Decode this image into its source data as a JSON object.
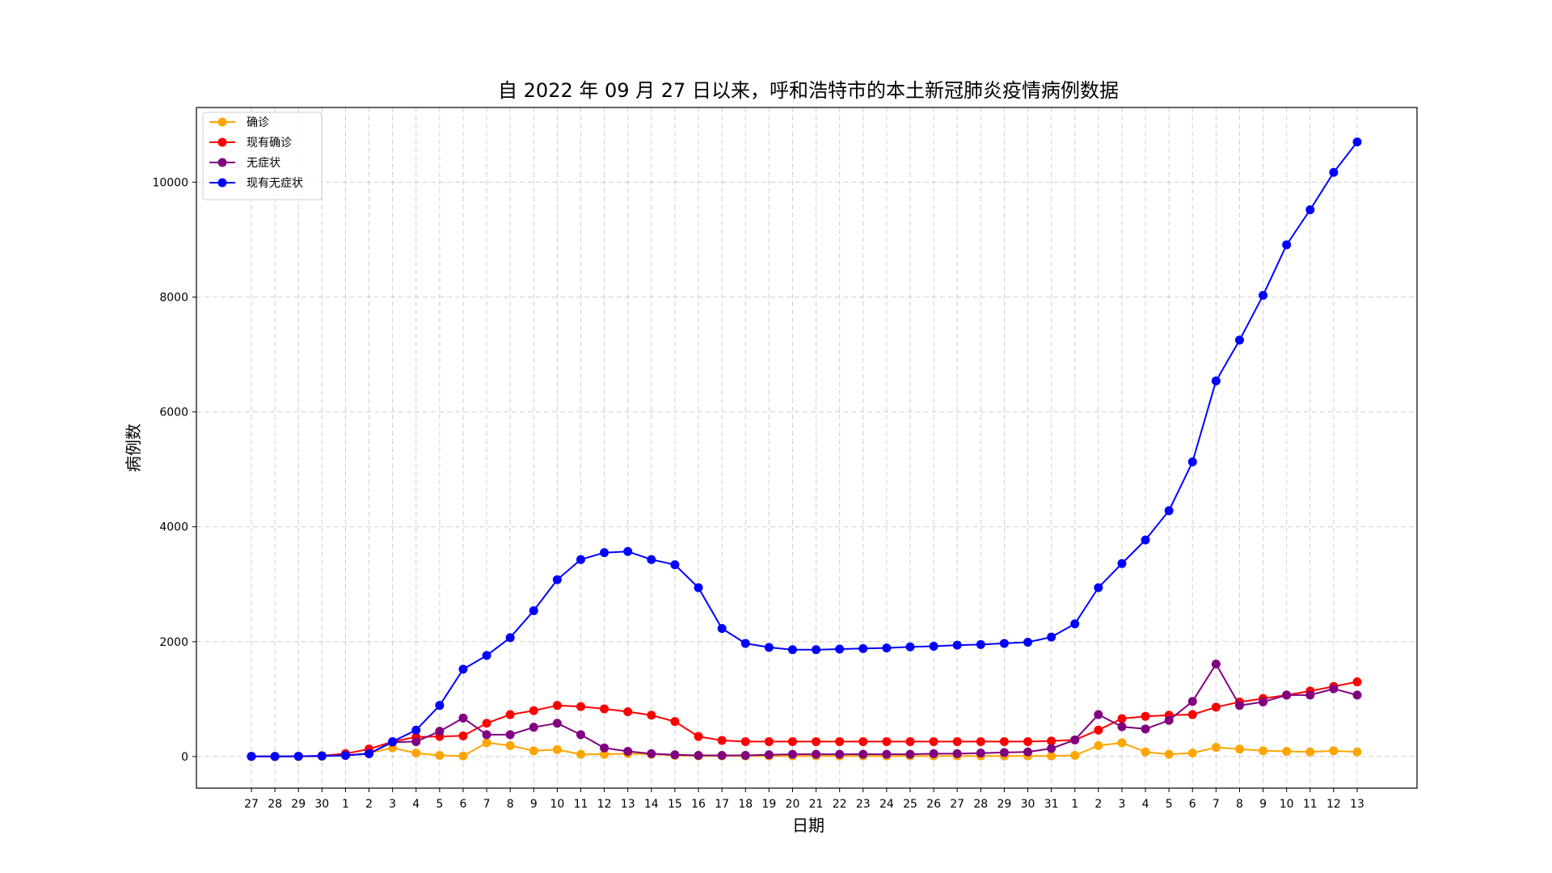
{
  "chart_data": {
    "type": "line",
    "title": "自 2022 年 09 月 27 日以来，呼和浩特市的本土新冠肺炎疫情病例数据",
    "xlabel": "日期",
    "ylabel": "病例数",
    "ylim": [
      -550,
      11300
    ],
    "yticks": [
      0,
      2000,
      4000,
      6000,
      8000,
      10000
    ],
    "grid": true,
    "legend_position": "top-left",
    "categories": [
      "27",
      "28",
      "29",
      "30",
      "1",
      "2",
      "3",
      "4",
      "5",
      "6",
      "7",
      "8",
      "9",
      "10",
      "11",
      "12",
      "13",
      "14",
      "15",
      "16",
      "17",
      "18",
      "19",
      "20",
      "21",
      "22",
      "23",
      "24",
      "25",
      "26",
      "27",
      "28",
      "29",
      "30",
      "31",
      "1",
      "2",
      "3",
      "4",
      "5",
      "6",
      "7",
      "8",
      "9",
      "10",
      "11",
      "12",
      "13"
    ],
    "series": [
      {
        "name": "确诊",
        "color": "#ffa500",
        "values": [
          2,
          0,
          1,
          5,
          20,
          60,
          150,
          60,
          20,
          10,
          240,
          190,
          100,
          120,
          40,
          40,
          50,
          40,
          20,
          10,
          10,
          10,
          10,
          10,
          10,
          10,
          10,
          10,
          10,
          10,
          10,
          10,
          10,
          10,
          10,
          20,
          190,
          240,
          80,
          40,
          60,
          160,
          130,
          100,
          90,
          80,
          100,
          80
        ]
      },
      {
        "name": "现有确诊",
        "color": "#ff0000",
        "values": [
          2,
          2,
          3,
          15,
          50,
          130,
          260,
          340,
          350,
          360,
          580,
          730,
          800,
          890,
          870,
          830,
          780,
          720,
          610,
          350,
          280,
          260,
          260,
          260,
          260,
          260,
          260,
          260,
          260,
          260,
          260,
          260,
          260,
          260,
          270,
          290,
          460,
          660,
          700,
          720,
          730,
          860,
          950,
          1010,
          1070,
          1140,
          1220,
          1300
        ]
      },
      {
        "name": "无症状",
        "color": "#800080",
        "values": [
          2,
          0,
          5,
          10,
          20,
          50,
          250,
          260,
          440,
          670,
          380,
          380,
          510,
          580,
          380,
          150,
          90,
          50,
          30,
          20,
          20,
          20,
          30,
          40,
          40,
          40,
          40,
          40,
          40,
          50,
          50,
          60,
          70,
          80,
          140,
          290,
          730,
          520,
          480,
          630,
          960,
          1610,
          890,
          950,
          1070,
          1070,
          1180,
          1070
        ]
      },
      {
        "name": "现有无症状",
        "color": "#0000ff",
        "values": [
          2,
          2,
          5,
          10,
          20,
          50,
          260,
          460,
          890,
          1520,
          1760,
          2070,
          2540,
          3080,
          3430,
          3550,
          3570,
          3430,
          3340,
          2940,
          2230,
          1970,
          1900,
          1860,
          1860,
          1870,
          1880,
          1890,
          1910,
          1920,
          1940,
          1950,
          1970,
          1990,
          2080,
          2310,
          2940,
          3360,
          3770,
          4280,
          5130,
          6540,
          7250,
          8030,
          8910,
          9520,
          10170,
          10700
        ]
      }
    ]
  }
}
